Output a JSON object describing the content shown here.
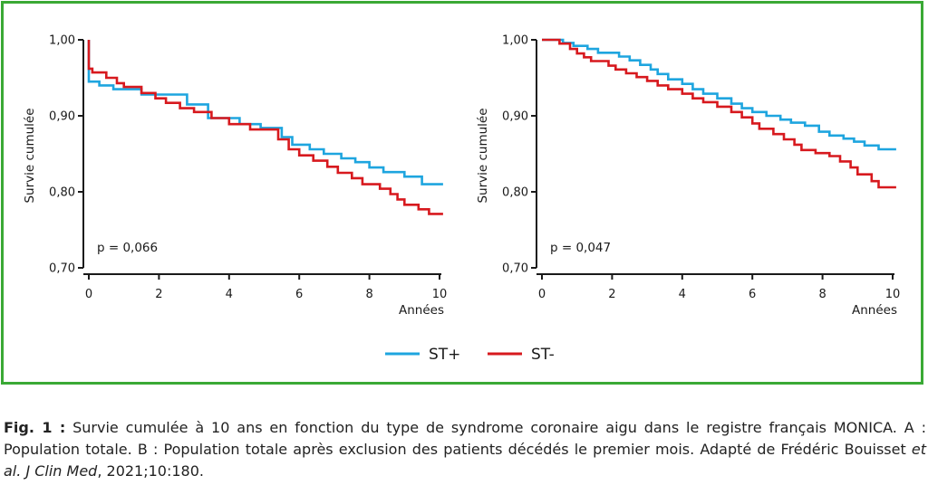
{
  "chart_data": [
    {
      "type": "line",
      "panel": "A",
      "ylabel": "Survie cumulée",
      "xlabel": "Années",
      "xlim": [
        0,
        10
      ],
      "ylim": [
        0.7,
        1.0
      ],
      "xticks": [
        "0",
        "2",
        "4",
        "6",
        "8",
        "10"
      ],
      "yticks": [
        "0,70",
        "0,80",
        "0,90",
        "1,00"
      ],
      "annotation": "p = 0,066",
      "series": [
        {
          "name": "ST+",
          "color": "#1ea5df",
          "points": [
            [
              0,
              1.0
            ],
            [
              0,
              0.945
            ],
            [
              0.3,
              0.945
            ],
            [
              0.3,
              0.94
            ],
            [
              0.7,
              0.94
            ],
            [
              0.7,
              0.935
            ],
            [
              1.5,
              0.935
            ],
            [
              1.5,
              0.928
            ],
            [
              2.8,
              0.928
            ],
            [
              2.8,
              0.915
            ],
            [
              3.4,
              0.915
            ],
            [
              3.4,
              0.897
            ],
            [
              4.3,
              0.897
            ],
            [
              4.3,
              0.889
            ],
            [
              4.9,
              0.889
            ],
            [
              4.9,
              0.884
            ],
            [
              5.5,
              0.884
            ],
            [
              5.5,
              0.872
            ],
            [
              5.8,
              0.872
            ],
            [
              5.8,
              0.862
            ],
            [
              6.3,
              0.862
            ],
            [
              6.3,
              0.856
            ],
            [
              6.7,
              0.856
            ],
            [
              6.7,
              0.85
            ],
            [
              7.2,
              0.85
            ],
            [
              7.2,
              0.844
            ],
            [
              7.6,
              0.844
            ],
            [
              7.6,
              0.839
            ],
            [
              8.0,
              0.839
            ],
            [
              8.0,
              0.832
            ],
            [
              8.4,
              0.832
            ],
            [
              8.4,
              0.826
            ],
            [
              9.0,
              0.826
            ],
            [
              9.0,
              0.82
            ],
            [
              9.5,
              0.82
            ],
            [
              9.5,
              0.81
            ],
            [
              10.1,
              0.81
            ]
          ]
        },
        {
          "name": "ST-",
          "color": "#d7191e",
          "points": [
            [
              0,
              1.0
            ],
            [
              0,
              0.962
            ],
            [
              0.1,
              0.962
            ],
            [
              0.1,
              0.957
            ],
            [
              0.5,
              0.957
            ],
            [
              0.5,
              0.95
            ],
            [
              0.8,
              0.95
            ],
            [
              0.8,
              0.943
            ],
            [
              1.0,
              0.943
            ],
            [
              1.0,
              0.938
            ],
            [
              1.5,
              0.938
            ],
            [
              1.5,
              0.93
            ],
            [
              1.9,
              0.93
            ],
            [
              1.9,
              0.923
            ],
            [
              2.2,
              0.923
            ],
            [
              2.2,
              0.917
            ],
            [
              2.6,
              0.917
            ],
            [
              2.6,
              0.91
            ],
            [
              3.0,
              0.91
            ],
            [
              3.0,
              0.905
            ],
            [
              3.5,
              0.905
            ],
            [
              3.5,
              0.897
            ],
            [
              4.0,
              0.897
            ],
            [
              4.0,
              0.889
            ],
            [
              4.6,
              0.889
            ],
            [
              4.6,
              0.882
            ],
            [
              5.4,
              0.882
            ],
            [
              5.4,
              0.869
            ],
            [
              5.7,
              0.869
            ],
            [
              5.7,
              0.856
            ],
            [
              6.0,
              0.856
            ],
            [
              6.0,
              0.848
            ],
            [
              6.4,
              0.848
            ],
            [
              6.4,
              0.841
            ],
            [
              6.8,
              0.841
            ],
            [
              6.8,
              0.833
            ],
            [
              7.1,
              0.833
            ],
            [
              7.1,
              0.825
            ],
            [
              7.5,
              0.825
            ],
            [
              7.5,
              0.818
            ],
            [
              7.8,
              0.818
            ],
            [
              7.8,
              0.81
            ],
            [
              8.3,
              0.81
            ],
            [
              8.3,
              0.804
            ],
            [
              8.6,
              0.804
            ],
            [
              8.6,
              0.797
            ],
            [
              8.8,
              0.797
            ],
            [
              8.8,
              0.79
            ],
            [
              9.0,
              0.79
            ],
            [
              9.0,
              0.783
            ],
            [
              9.4,
              0.783
            ],
            [
              9.4,
              0.777
            ],
            [
              9.7,
              0.777
            ],
            [
              9.7,
              0.771
            ],
            [
              10.1,
              0.771
            ]
          ]
        }
      ]
    },
    {
      "type": "line",
      "panel": "B",
      "ylabel": "Survie cumulée",
      "xlabel": "Années",
      "xlim": [
        0,
        10
      ],
      "ylim": [
        0.7,
        1.0
      ],
      "xticks": [
        "0",
        "2",
        "4",
        "6",
        "8",
        "10"
      ],
      "yticks": [
        "0,70",
        "0,80",
        "0,90",
        "1,00"
      ],
      "annotation": "p = 0,047",
      "series": [
        {
          "name": "ST+",
          "color": "#1ea5df",
          "points": [
            [
              0,
              1.0
            ],
            [
              0.6,
              1.0
            ],
            [
              0.6,
              0.996
            ],
            [
              0.9,
              0.996
            ],
            [
              0.9,
              0.992
            ],
            [
              1.3,
              0.992
            ],
            [
              1.3,
              0.988
            ],
            [
              1.6,
              0.988
            ],
            [
              1.6,
              0.983
            ],
            [
              2.2,
              0.983
            ],
            [
              2.2,
              0.978
            ],
            [
              2.5,
              0.978
            ],
            [
              2.5,
              0.973
            ],
            [
              2.8,
              0.973
            ],
            [
              2.8,
              0.967
            ],
            [
              3.1,
              0.967
            ],
            [
              3.1,
              0.961
            ],
            [
              3.3,
              0.961
            ],
            [
              3.3,
              0.955
            ],
            [
              3.6,
              0.955
            ],
            [
              3.6,
              0.948
            ],
            [
              4.0,
              0.948
            ],
            [
              4.0,
              0.942
            ],
            [
              4.3,
              0.942
            ],
            [
              4.3,
              0.935
            ],
            [
              4.6,
              0.935
            ],
            [
              4.6,
              0.929
            ],
            [
              5.0,
              0.929
            ],
            [
              5.0,
              0.923
            ],
            [
              5.4,
              0.923
            ],
            [
              5.4,
              0.916
            ],
            [
              5.7,
              0.916
            ],
            [
              5.7,
              0.91
            ],
            [
              6.0,
              0.91
            ],
            [
              6.0,
              0.905
            ],
            [
              6.4,
              0.905
            ],
            [
              6.4,
              0.9
            ],
            [
              6.8,
              0.9
            ],
            [
              6.8,
              0.895
            ],
            [
              7.1,
              0.895
            ],
            [
              7.1,
              0.891
            ],
            [
              7.5,
              0.891
            ],
            [
              7.5,
              0.887
            ],
            [
              7.9,
              0.887
            ],
            [
              7.9,
              0.879
            ],
            [
              8.2,
              0.879
            ],
            [
              8.2,
              0.874
            ],
            [
              8.6,
              0.874
            ],
            [
              8.6,
              0.87
            ],
            [
              8.9,
              0.87
            ],
            [
              8.9,
              0.866
            ],
            [
              9.2,
              0.866
            ],
            [
              9.2,
              0.861
            ],
            [
              9.6,
              0.861
            ],
            [
              9.6,
              0.856
            ],
            [
              10.1,
              0.856
            ]
          ]
        },
        {
          "name": "ST-",
          "color": "#d7191e",
          "points": [
            [
              0,
              1.0
            ],
            [
              0.5,
              1.0
            ],
            [
              0.5,
              0.995
            ],
            [
              0.8,
              0.995
            ],
            [
              0.8,
              0.988
            ],
            [
              1.0,
              0.988
            ],
            [
              1.0,
              0.982
            ],
            [
              1.2,
              0.982
            ],
            [
              1.2,
              0.977
            ],
            [
              1.4,
              0.977
            ],
            [
              1.4,
              0.972
            ],
            [
              1.9,
              0.972
            ],
            [
              1.9,
              0.966
            ],
            [
              2.1,
              0.966
            ],
            [
              2.1,
              0.961
            ],
            [
              2.4,
              0.961
            ],
            [
              2.4,
              0.956
            ],
            [
              2.7,
              0.956
            ],
            [
              2.7,
              0.951
            ],
            [
              3.0,
              0.951
            ],
            [
              3.0,
              0.946
            ],
            [
              3.3,
              0.946
            ],
            [
              3.3,
              0.94
            ],
            [
              3.6,
              0.94
            ],
            [
              3.6,
              0.935
            ],
            [
              4.0,
              0.935
            ],
            [
              4.0,
              0.929
            ],
            [
              4.3,
              0.929
            ],
            [
              4.3,
              0.923
            ],
            [
              4.6,
              0.923
            ],
            [
              4.6,
              0.918
            ],
            [
              5.0,
              0.918
            ],
            [
              5.0,
              0.912
            ],
            [
              5.4,
              0.912
            ],
            [
              5.4,
              0.905
            ],
            [
              5.7,
              0.905
            ],
            [
              5.7,
              0.898
            ],
            [
              6.0,
              0.898
            ],
            [
              6.0,
              0.89
            ],
            [
              6.2,
              0.89
            ],
            [
              6.2,
              0.883
            ],
            [
              6.6,
              0.883
            ],
            [
              6.6,
              0.876
            ],
            [
              6.9,
              0.876
            ],
            [
              6.9,
              0.869
            ],
            [
              7.2,
              0.869
            ],
            [
              7.2,
              0.862
            ],
            [
              7.4,
              0.862
            ],
            [
              7.4,
              0.855
            ],
            [
              7.8,
              0.855
            ],
            [
              7.8,
              0.851
            ],
            [
              8.2,
              0.851
            ],
            [
              8.2,
              0.847
            ],
            [
              8.5,
              0.847
            ],
            [
              8.5,
              0.84
            ],
            [
              8.8,
              0.84
            ],
            [
              8.8,
              0.832
            ],
            [
              9.0,
              0.832
            ],
            [
              9.0,
              0.823
            ],
            [
              9.4,
              0.823
            ],
            [
              9.4,
              0.814
            ],
            [
              9.6,
              0.814
            ],
            [
              9.6,
              0.806
            ],
            [
              10.1,
              0.806
            ]
          ]
        }
      ]
    }
  ],
  "legend": [
    {
      "label": "ST+",
      "color": "#1ea5df"
    },
    {
      "label": "ST-",
      "color": "#d7191e"
    }
  ],
  "caption": {
    "lead": "Fig. 1 :",
    "text": " Survie cumulée à 10 ans en fonction du type de syndrome coronaire aigu dans le registre français MONICA. A : Population totale. B : Population totale après exclusion des patients décédés le premier mois. Adapté de Frédéric Bouisset ",
    "italic1": "et al.",
    "mid": " ",
    "italic2": "J Clin Med",
    "tail": ", 2021;10:180."
  },
  "colors": {
    "frame": "#3aa935",
    "axis": "#1a1a1a"
  }
}
